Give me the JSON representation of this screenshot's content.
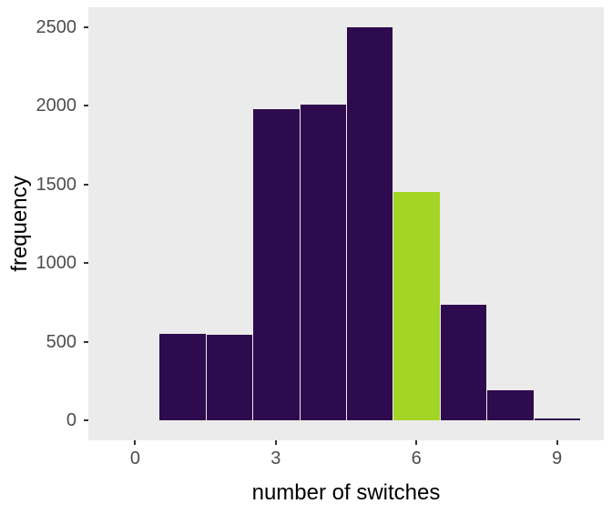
{
  "chart_data": {
    "type": "bar",
    "subtype": "histogram",
    "title": "",
    "xlabel": "number of switches",
    "ylabel": "frequency",
    "x_ticks": [
      0,
      3,
      6,
      9
    ],
    "y_ticks": [
      0,
      500,
      1000,
      1500,
      2000,
      2500
    ],
    "xlim": [
      -1,
      10
    ],
    "ylim": [
      -125,
      2625
    ],
    "bin_width": 1,
    "bins": [
      {
        "x": 1,
        "count": 550
      },
      {
        "x": 2,
        "count": 545
      },
      {
        "x": 3,
        "count": 1980
      },
      {
        "x": 4,
        "count": 2005
      },
      {
        "x": 5,
        "count": 2500
      },
      {
        "x": 6,
        "count": 1455
      },
      {
        "x": 7,
        "count": 735
      },
      {
        "x": 8,
        "count": 190
      },
      {
        "x": 9,
        "count": 15
      }
    ],
    "highlight_x": 6,
    "colors": {
      "bar": "#2E0A4E",
      "highlight": "#A4D425",
      "panel_background": "#EBEBEB",
      "axis_ticks": "#333333",
      "tick_label": "#4D4D4D",
      "axis_title": "#000000"
    },
    "grid": false,
    "legend": false
  }
}
